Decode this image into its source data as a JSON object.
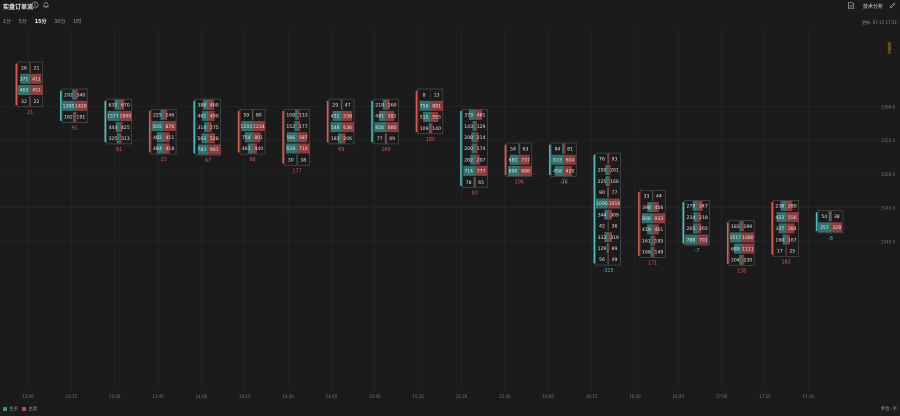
{
  "header": {
    "title": "实盘订单流",
    "tabs": [
      "1分",
      "5分",
      "15分",
      "30分",
      "1时"
    ],
    "active_tab": "15分",
    "tech_button": "技术分析",
    "update_time": "更新: 07-15 17:31",
    "side_label": "收盘价"
  },
  "legend": {
    "buy_label": "主买",
    "sell_label": "主卖",
    "unit_label": "单位: 手"
  },
  "colors": {
    "buy": "#3a8f8b",
    "sell": "#b24a4a",
    "up": "#e05552",
    "down": "#42c0bd",
    "delta_pos": "#e05552",
    "delta_neg": "#42c0bd"
  },
  "chart_data": {
    "type": "footprint",
    "price_ticks": [
      "3360.0",
      "3355.0",
      "3350.0",
      "3345.0",
      "3340.0"
    ],
    "time_ticks": [
      "13:00",
      "13:15",
      "13:30",
      "13:45",
      "14:00",
      "14:15",
      "14:30",
      "14:45",
      "15:00",
      "15:15",
      "15:30",
      "15:45",
      "16:00",
      "16:15",
      "16:30",
      "16:45",
      "17:00",
      "17:15",
      "17:30"
    ],
    "bars": [
      {
        "x": 9,
        "top": 3366.6,
        "dir": "up",
        "delta": "21",
        "cells": [
          [
            "26",
            "21"
          ],
          [
            "371",
            "411"
          ],
          [
            "463",
            "451"
          ],
          [
            "32",
            "22"
          ]
        ]
      },
      {
        "x": 27,
        "top": 3362.6,
        "dir": "down",
        "delta": "91",
        "cells": [
          [
            "292",
            "340"
          ],
          [
            "1395",
            "1426"
          ],
          [
            "182",
            "191"
          ]
        ]
      },
      {
        "x": 45,
        "top": 3361.1,
        "dir": "down",
        "delta": "81",
        "cells": [
          [
            "632",
            "670"
          ],
          [
            "1577",
            "1690"
          ],
          [
            "444",
            "425"
          ],
          [
            "325",
            "313"
          ]
        ]
      },
      {
        "x": 63,
        "top": 3359.6,
        "dir": "up",
        "delta": "23",
        "cells": [
          [
            "225",
            "246"
          ],
          [
            "835",
            "876"
          ],
          [
            "482",
            "411"
          ],
          [
            "484",
            "418"
          ]
        ]
      },
      {
        "x": 81,
        "top": 3361.1,
        "dir": "down",
        "delta": "67",
        "cells": [
          [
            "388",
            "460"
          ],
          [
            "462",
            "499"
          ],
          [
            "314",
            "275"
          ],
          [
            "503",
            "528"
          ],
          [
            "783",
            "961"
          ]
        ]
      },
      {
        "x": 99,
        "top": 3359.6,
        "dir": "up",
        "delta": "68",
        "cells": [
          [
            "59",
            "80"
          ],
          [
            "1103",
            "1234"
          ],
          [
            "754",
            "801"
          ],
          [
            "461",
            "440"
          ]
        ]
      },
      {
        "x": 117,
        "top": 3359.6,
        "dir": "up",
        "delta": "177",
        "cells": [
          [
            "108",
            "133"
          ],
          [
            "152",
            "177"
          ],
          [
            "566",
            "587"
          ],
          [
            "628",
            "710"
          ],
          [
            "30",
            "38"
          ]
        ]
      },
      {
        "x": 135,
        "top": 3361.1,
        "dir": "up",
        "delta": "69",
        "cells": [
          [
            "29",
            "47"
          ],
          [
            "452",
            "538"
          ],
          [
            "548",
            "636"
          ],
          [
            "183",
            "206"
          ]
        ]
      },
      {
        "x": 153,
        "top": 3361.1,
        "dir": "down",
        "delta": "169",
        "cells": [
          [
            "218",
            "260"
          ],
          [
            "481",
            "582"
          ],
          [
            "826",
            "880"
          ],
          [
            "77",
            "69"
          ]
        ]
      },
      {
        "x": 171,
        "top": 3362.6,
        "dir": "up",
        "delta": "180",
        "cells": [
          [
            "8",
            "13"
          ],
          [
            "758",
            "881"
          ],
          [
            "515",
            "555"
          ],
          [
            "109",
            "140"
          ]
        ]
      },
      {
        "x": 189,
        "top": 3359.6,
        "dir": "down",
        "delta": "80",
        "cells": [
          [
            "373",
            "461"
          ],
          [
            "143",
            "129"
          ],
          [
            "208",
            "214"
          ],
          [
            "200",
            "174"
          ],
          [
            "282",
            "297"
          ],
          [
            "714",
            "777"
          ],
          [
            "78",
            "65"
          ]
        ]
      },
      {
        "x": 207,
        "top": 3354.6,
        "dir": "up",
        "delta": "106",
        "cells": [
          [
            "54",
            "63"
          ],
          [
            "681",
            "737"
          ],
          [
            "800",
            "888"
          ]
        ]
      },
      {
        "x": 225,
        "top": 3354.6,
        "dir": "down",
        "delta": "-36",
        "cells": [
          [
            "84",
            "81"
          ],
          [
            "633",
            "604"
          ],
          [
            "458",
            "420"
          ]
        ]
      },
      {
        "x": 243,
        "top": 3353.1,
        "dir": "down",
        "delta": "-315",
        "cells": [
          [
            "76",
            "93"
          ],
          [
            "250",
            "201"
          ],
          [
            "225",
            "166"
          ],
          [
            "90",
            "77"
          ],
          [
            "1096",
            "1016"
          ],
          [
            "344",
            "309"
          ],
          [
            "42",
            "36"
          ],
          [
            "332",
            "319"
          ],
          [
            "129",
            "89"
          ],
          [
            "56",
            "49"
          ]
        ]
      },
      {
        "x": 261,
        "top": 3347.6,
        "dir": "up",
        "delta": "171",
        "cells": [
          [
            "33",
            "44"
          ],
          [
            "398",
            "456"
          ],
          [
            "808",
            "933"
          ],
          [
            "419",
            "461"
          ],
          [
            "161",
            "185"
          ],
          [
            "166",
            "149"
          ]
        ]
      },
      {
        "x": 279,
        "top": 3346.1,
        "dir": "down",
        "delta": "-7",
        "cells": [
          [
            "279",
            "347"
          ],
          [
            "234",
            "218"
          ],
          [
            "265",
            "265"
          ],
          [
            "788",
            "701"
          ]
        ]
      },
      {
        "x": 297,
        "top": 3343.1,
        "dir": "up",
        "delta": "138",
        "cells": [
          [
            "183",
            "199"
          ],
          [
            "1017",
            "1080"
          ],
          [
            "689",
            "1111"
          ],
          [
            "204",
            "230"
          ]
        ]
      },
      {
        "x": 315,
        "top": 3346.1,
        "dir": "up",
        "delta": "182",
        "cells": [
          [
            "238",
            "280"
          ],
          [
            "423",
            "556"
          ],
          [
            "327",
            "384"
          ],
          [
            "160",
            "167"
          ],
          [
            "17",
            "25"
          ]
        ]
      },
      {
        "x": 333,
        "top": 3344.6,
        "dir": "down",
        "delta": "-8",
        "cells": [
          [
            "54",
            "38"
          ],
          [
            "357",
            "328"
          ]
        ]
      }
    ]
  }
}
